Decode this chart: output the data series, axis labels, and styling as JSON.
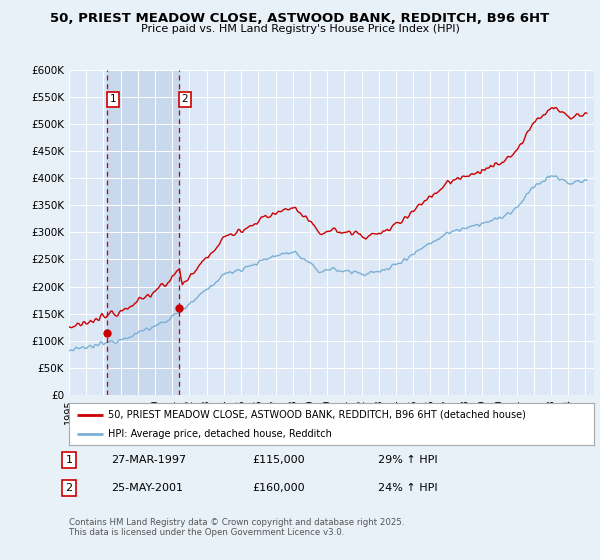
{
  "title_line1": "50, PRIEST MEADOW CLOSE, ASTWOOD BANK, REDDITCH, B96 6HT",
  "title_line2": "Price paid vs. HM Land Registry's House Price Index (HPI)",
  "ylim": [
    0,
    600000
  ],
  "xlim_start": 1995.0,
  "xlim_end": 2025.5,
  "background_color": "#e8f0f8",
  "plot_bg_color": "#dce8f5",
  "shade_color": "#c8d8ed",
  "grid_color": "#ffffff",
  "red_line_color": "#cc0000",
  "blue_line_color": "#7ab0d4",
  "transaction1_date": "27-MAR-1997",
  "transaction1_price": 115000,
  "transaction1_hpi": "29% ↑ HPI",
  "transaction1_x": 1997.22,
  "transaction2_date": "25-MAY-2001",
  "transaction2_price": 160000,
  "transaction2_hpi": "24% ↑ HPI",
  "transaction2_x": 2001.38,
  "legend_label_red": "50, PRIEST MEADOW CLOSE, ASTWOOD BANK, REDDITCH, B96 6HT (detached house)",
  "legend_label_blue": "HPI: Average price, detached house, Redditch",
  "footer_text": "Contains HM Land Registry data © Crown copyright and database right 2025.\nThis data is licensed under the Open Government Licence v3.0."
}
